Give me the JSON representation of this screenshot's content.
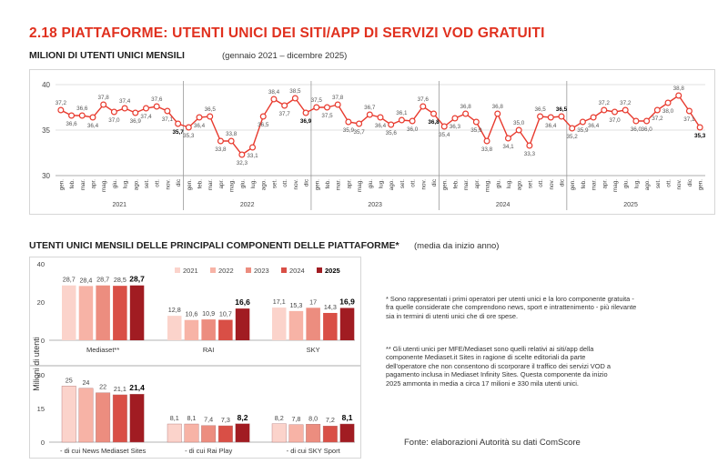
{
  "title": "2.18 PIATTAFORME: UTENTI UNICI DEI SITI/APP DI SERVIZI VOD GRATUITI",
  "line_section": {
    "title": "MILIONI DI UTENTI UNICI MENSILI",
    "period": "(gennaio 2021 – dicembre 2025)"
  },
  "bar_section": {
    "title": "UTENTI UNICI MENSILI DELLE PRINCIPALI COMPONENTI DELLE PIATTAFORME*",
    "note": "(media da inizio anno)"
  },
  "notes": {
    "note1": "* Sono rappresentati i primi operatori per utenti unici e la loro componente gratuita - fra quelle considerate che comprendono news, sport e intrattenimento - più rilevante sia in termini di utenti unici che di ore spese.",
    "note2": "** Gli utenti unici per MFE/Mediaset sono quelli relativi ai siti/app della componente Mediaset.it Sites in ragione di scelte editoriali da parte dell'operatore che non consentono di scorporare il traffico dei servizi VOD a pagamento inclusa in Mediaset Infinity Sites. Questa componente da inizio 2025 ammonta in media a circa 17 milioni e 330 mila utenti unici.",
    "source": "Fonte: elaborazioni Autorità su dati ComScore"
  },
  "colors": {
    "accent": "#e0301e",
    "line": "#e83a2e",
    "y2021": "#fbd3cb",
    "y2022": "#f7b3a6",
    "y2023": "#ec8d7f",
    "y2024": "#d94f46",
    "y2025": "#a11c22"
  },
  "chart_data": [
    {
      "type": "line",
      "title": "MILIONI DI UTENTI UNICI MENSILI",
      "ylim": [
        30,
        40
      ],
      "yticks": [
        30,
        35,
        40
      ],
      "month_labels": [
        "gen.",
        "feb.",
        "mar.",
        "apr.",
        "mag.",
        "giu.",
        "lug.",
        "ago.",
        "set.",
        "ott.",
        "nov.",
        "dic"
      ],
      "years": [
        "2021",
        "2022",
        "2023",
        "2024",
        "2025"
      ],
      "values": [
        37.2,
        36.6,
        36.6,
        36.4,
        37.8,
        37.0,
        37.4,
        36.9,
        37.4,
        37.6,
        37.1,
        35.7,
        35.3,
        36.4,
        36.5,
        33.8,
        33.8,
        32.3,
        33.1,
        36.5,
        38.4,
        37.7,
        38.5,
        36.9,
        37.5,
        37.5,
        37.8,
        35.9,
        35.7,
        36.7,
        36.4,
        35.6,
        36.1,
        36.0,
        37.6,
        36.8,
        35.4,
        36.3,
        36.8,
        35.9,
        33.8,
        36.8,
        34.1,
        35.0,
        33.3,
        36.5,
        36.4,
        36.5,
        35.2,
        35.9,
        36.4,
        37.2,
        37.0,
        37.2,
        36.0,
        36.0,
        37.2,
        38.0,
        38.8,
        37.1,
        35.3
      ],
      "labels": [
        "37,2",
        "36,6",
        "36,6",
        "36,4",
        "37,8",
        "37,0",
        "37,4",
        "36,9",
        "37,4",
        "37,6",
        "37,1",
        "35,7",
        "35,3",
        "36,4",
        "36,5",
        "33,8",
        "33,8",
        "32,3",
        "33,1",
        "36,5",
        "38,4",
        "37,7",
        "38,5",
        "36,9",
        "37,5",
        "37,5",
        "37,8",
        "35,9",
        "35,7",
        "36,7",
        "36,4",
        "35,6",
        "36,1",
        "36,0",
        "37,6",
        "36,8",
        "35,4",
        "36,3",
        "36,8",
        "35,9",
        "33,8",
        "36,8",
        "34,1",
        "35,0",
        "33,3",
        "36,5",
        "36,4",
        "36,5",
        "35,2",
        "35,9",
        "36,4",
        "37,2",
        "37,0",
        "37,2",
        "36,0",
        "36,0",
        "37,2",
        "38,0",
        "38,8",
        "37,1",
        "35,3"
      ],
      "bold_labels": [
        11,
        23,
        35,
        47,
        60
      ]
    },
    {
      "type": "bar",
      "legend": [
        "2021",
        "2022",
        "2023",
        "2024",
        "2025"
      ],
      "ylabel": "Milioni di utenti",
      "rows": [
        {
          "ylim": [
            0,
            40
          ],
          "yticks": [
            0,
            20,
            40
          ],
          "groups": [
            {
              "name": "Mediaset**",
              "values": [
                28.7,
                28.4,
                28.7,
                28.5,
                28.7
              ],
              "labels": [
                "28,7",
                "28,4",
                "28,7",
                "28,5",
                "28,7"
              ]
            },
            {
              "name": "RAI",
              "values": [
                12.8,
                10.6,
                10.9,
                10.7,
                16.6
              ],
              "labels": [
                "12,8",
                "10,6",
                "10,9",
                "10,7",
                "16,6"
              ]
            },
            {
              "name": "SKY",
              "values": [
                17.1,
                15.3,
                17.0,
                14.3,
                16.9
              ],
              "labels": [
                "17,1",
                "15,3",
                "17",
                "14,3",
                "16,9"
              ]
            }
          ]
        },
        {
          "ylim": [
            0,
            30
          ],
          "yticks": [
            0,
            15,
            30
          ],
          "groups": [
            {
              "name": "- di cui News Mediaset Sites",
              "values": [
                25,
                24,
                22,
                21.1,
                21.4
              ],
              "labels": [
                "25",
                "24",
                "22",
                "21,1",
                "21,4"
              ]
            },
            {
              "name": "- di cui Rai Play",
              "values": [
                8.1,
                8.1,
                7.4,
                7.3,
                8.2
              ],
              "labels": [
                "8,1",
                "8,1",
                "7,4",
                "7,3",
                "8,2"
              ]
            },
            {
              "name": "- di cui SKY Sport",
              "values": [
                8.2,
                7.8,
                8.0,
                7.2,
                8.1
              ],
              "labels": [
                "8,2",
                "7,8",
                "8,0",
                "7,2",
                "8,1"
              ]
            }
          ]
        }
      ]
    }
  ]
}
